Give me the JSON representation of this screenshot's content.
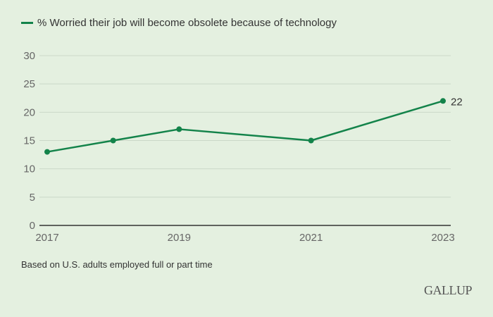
{
  "chart_data": {
    "type": "line",
    "title": "",
    "xlabel": "",
    "ylabel": "",
    "x": [
      2017,
      2018,
      2019,
      2021,
      2023
    ],
    "series": [
      {
        "name": "% Worried their job will become obsolete because of technology",
        "values": [
          13,
          15,
          17,
          15,
          22
        ],
        "color": "#13834a"
      }
    ],
    "x_tick_labels": [
      "2017",
      "2019",
      "2021",
      "2023"
    ],
    "x_ticks": [
      2017,
      2019,
      2021,
      2023
    ],
    "xlim": [
      2017,
      2023
    ],
    "y_ticks": [
      0,
      5,
      10,
      15,
      20,
      25,
      30
    ],
    "ylim": [
      0,
      30
    ],
    "grid": true,
    "legend_position": "top-left",
    "annotations": [
      {
        "x": 2023,
        "value": 22,
        "label": "22"
      }
    ]
  },
  "legend": {
    "label": "% Worried their job will become obsolete because of technology"
  },
  "footnote": "Based on U.S. adults employed full or part time",
  "brand": "GALLUP"
}
